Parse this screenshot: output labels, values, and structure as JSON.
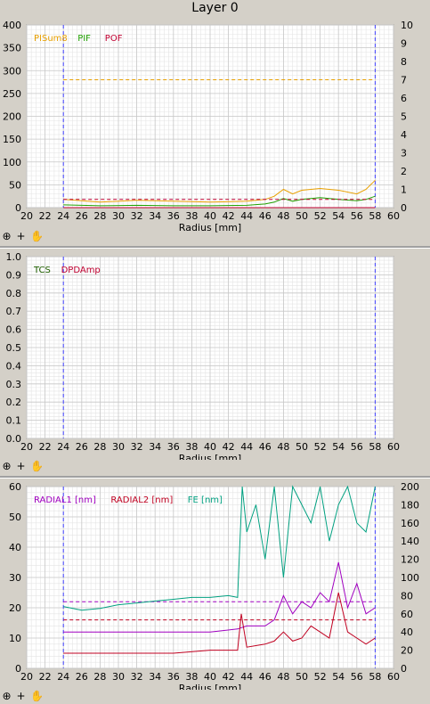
{
  "title": "Layer 0",
  "toolbar": {
    "zoom_icon": "zoom-icon",
    "crosshair_icon": "crosshair-icon",
    "pan_icon": "hand-icon"
  },
  "chart_data": [
    {
      "type": "line",
      "xlabel": "Radius [mm]",
      "xlim": [
        20,
        60
      ],
      "xticks": [
        20,
        22,
        24,
        26,
        28,
        30,
        32,
        34,
        36,
        38,
        40,
        42,
        44,
        46,
        48,
        50,
        52,
        54,
        56,
        58,
        60
      ],
      "ylim_left": [
        0,
        400
      ],
      "yticks_left": [
        0,
        50,
        100,
        150,
        200,
        250,
        300,
        350,
        400
      ],
      "ylim_right": [
        0,
        10
      ],
      "yticks_right": [
        0,
        1,
        2,
        3,
        4,
        5,
        6,
        7,
        8,
        9,
        10
      ],
      "grid": true,
      "legend": "top-left",
      "markers_x": [
        24,
        58
      ],
      "series": [
        {
          "name": "PISum8",
          "color": "#e8a000",
          "axis": "left",
          "threshold": 280,
          "x": [
            24,
            28,
            32,
            36,
            40,
            44,
            46,
            47,
            48,
            49,
            50,
            52,
            54,
            56,
            57,
            58
          ],
          "values": [
            18,
            12,
            16,
            14,
            12,
            14,
            18,
            25,
            40,
            30,
            38,
            42,
            38,
            30,
            40,
            60
          ]
        },
        {
          "name": "PIF",
          "color": "#20a000",
          "axis": "left",
          "x": [
            24,
            28,
            32,
            36,
            40,
            44,
            46,
            47,
            48,
            49,
            50,
            52,
            54,
            56,
            57,
            58
          ],
          "values": [
            6,
            4,
            5,
            4,
            4,
            5,
            8,
            12,
            20,
            14,
            18,
            22,
            18,
            15,
            18,
            25
          ]
        },
        {
          "name": "POF",
          "color": "#c00030",
          "axis": "left",
          "threshold": 18,
          "x": [
            24,
            28,
            32,
            36,
            40,
            44,
            46,
            48,
            50,
            52,
            54,
            56,
            58
          ],
          "values": [
            0,
            0,
            0,
            0,
            0,
            0,
            0,
            0,
            0,
            0,
            0,
            0,
            0
          ]
        }
      ]
    },
    {
      "type": "line",
      "xlabel": "Radius [mm]",
      "xlim": [
        20,
        60
      ],
      "xticks": [
        20,
        22,
        24,
        26,
        28,
        30,
        32,
        34,
        36,
        38,
        40,
        42,
        44,
        46,
        48,
        50,
        52,
        54,
        56,
        58,
        60
      ],
      "ylim": [
        0,
        1
      ],
      "yticks": [
        0.0,
        0.1,
        0.2,
        0.3,
        0.4,
        0.5,
        0.6,
        0.7,
        0.8,
        0.9,
        1.0
      ],
      "grid": true,
      "legend": "top-left",
      "markers_x": [
        24,
        58
      ],
      "series": [
        {
          "name": "TCS",
          "color": "#206000",
          "values": []
        },
        {
          "name": "DPDAmp",
          "color": "#c00030",
          "values": []
        }
      ]
    },
    {
      "type": "line",
      "xlabel": "Radius [mm]",
      "xlim": [
        20,
        60
      ],
      "xticks": [
        20,
        22,
        24,
        26,
        28,
        30,
        32,
        34,
        36,
        38,
        40,
        42,
        44,
        46,
        48,
        50,
        52,
        54,
        56,
        58,
        60
      ],
      "ylim_left": [
        0,
        60
      ],
      "yticks_left": [
        0,
        10,
        20,
        30,
        40,
        50,
        60
      ],
      "ylim_right": [
        0,
        200
      ],
      "yticks_right": [
        0,
        20,
        40,
        60,
        80,
        100,
        120,
        140,
        160,
        180,
        200
      ],
      "grid": true,
      "legend": "top-left",
      "markers_x": [
        24,
        58
      ],
      "series": [
        {
          "name": "RADIAL1 [nm]",
          "color": "#a000c0",
          "axis": "left",
          "threshold": 22,
          "x": [
            24,
            28,
            32,
            36,
            40,
            43,
            44,
            46,
            47,
            48,
            49,
            50,
            51,
            52,
            53,
            54,
            55,
            56,
            57,
            58
          ],
          "values": [
            12,
            12,
            12,
            12,
            12,
            13,
            14,
            14,
            16,
            24,
            18,
            22,
            20,
            25,
            22,
            35,
            20,
            28,
            18,
            20
          ]
        },
        {
          "name": "RADIAL2 [nm]",
          "color": "#c00020",
          "axis": "left",
          "threshold": 16,
          "x": [
            24,
            28,
            32,
            36,
            40,
            43,
            43.4,
            44,
            46,
            47,
            48,
            49,
            50,
            51,
            52,
            53,
            54,
            55,
            56,
            57,
            58
          ],
          "values": [
            5,
            5,
            5,
            5,
            6,
            6,
            18,
            7,
            8,
            9,
            12,
            9,
            10,
            14,
            12,
            10,
            25,
            12,
            10,
            8,
            10
          ]
        },
        {
          "name": "FE [nm]",
          "color": "#00a080",
          "axis": "right",
          "x": [
            24,
            26,
            28,
            30,
            32,
            34,
            36,
            38,
            40,
            42,
            43,
            43.5,
            44,
            45,
            46,
            47,
            48,
            49,
            50,
            51,
            52,
            53,
            54,
            55,
            56,
            57,
            58
          ],
          "values": [
            68,
            64,
            66,
            70,
            72,
            74,
            76,
            78,
            78,
            80,
            78,
            200,
            150,
            180,
            120,
            200,
            100,
            200,
            180,
            160,
            200,
            140,
            180,
            200,
            160,
            150,
            200
          ]
        }
      ]
    }
  ]
}
